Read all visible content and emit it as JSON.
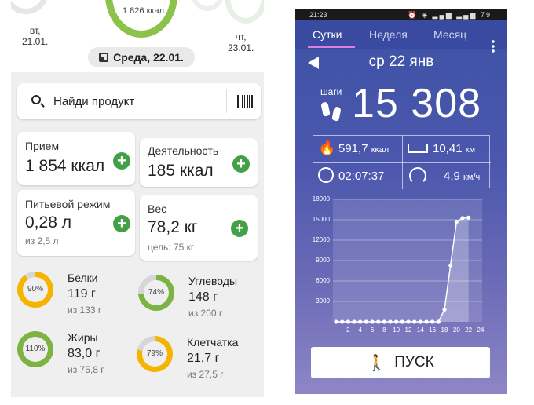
{
  "left": {
    "top_ring_text": "1 826 ккал",
    "days": [
      {
        "name": "вт,",
        "date": "21.01."
      },
      {
        "name": "чт,",
        "date": "23.01."
      }
    ],
    "date_chip": "Среда, 22.01.",
    "search": {
      "placeholder": "Найди продукт"
    },
    "cards": {
      "intake": {
        "title": "Прием",
        "value": "1 854 ккал"
      },
      "activity": {
        "title": "Деятельность",
        "value": "185 ккал"
      },
      "water": {
        "title": "Питьевой режим",
        "value": "0,28 л",
        "sub": "из 2,5 л"
      },
      "weight": {
        "title": "Вес",
        "value": "78,2 кг",
        "sub": "цель: 75 кг"
      }
    },
    "nutrients": [
      {
        "pct": "90%",
        "fraction": 0.9,
        "color": "#f5b400",
        "name": "Белки",
        "value": "119 г",
        "goal": "из 133 г"
      },
      {
        "pct": "74%",
        "fraction": 0.74,
        "color": "#7cb342",
        "name": "Углеводы",
        "value": "148 г",
        "goal": "из 200 г"
      },
      {
        "pct": "110%",
        "fraction": 1.0,
        "color": "#7cb342",
        "name": "Жиры",
        "value": "83,0 г",
        "goal": "из 75,8 г"
      },
      {
        "pct": "79%",
        "fraction": 0.79,
        "color": "#f5b400",
        "name": "Клетчатка",
        "value": "21,7 г",
        "goal": "из 27,5 г"
      }
    ],
    "colors": {
      "accent": "#43a047",
      "ring_green": "#8bc34a"
    }
  },
  "right": {
    "status_time": "21:23",
    "status_battery": "79",
    "tabs": [
      {
        "label": "Сутки",
        "active": true
      },
      {
        "label": "Неделя",
        "active": false
      },
      {
        "label": "Месяц",
        "active": false
      }
    ],
    "date": "ср 22 янв",
    "steps_label": "шаги",
    "steps_value": "15 308",
    "stats": {
      "calories": {
        "value": "591,7",
        "unit": "ккал"
      },
      "distance": {
        "value": "10,41",
        "unit": "км"
      },
      "duration": {
        "value": "02:07:37"
      },
      "speed": {
        "value": "4,9",
        "unit": "км/ч"
      }
    },
    "start_button": "ПУСК",
    "colors": {
      "bg_top": "#3d52a5",
      "bg_bottom": "#8e86c6",
      "tab_underline": "#e07de0"
    }
  },
  "chart_data": {
    "type": "area",
    "title": "",
    "xlabel": "",
    "ylabel": "",
    "x": [
      0,
      1,
      2,
      3,
      4,
      5,
      6,
      7,
      8,
      9,
      10,
      11,
      12,
      13,
      14,
      15,
      16,
      17,
      18,
      19,
      20,
      21,
      22
    ],
    "x_ticks": [
      "2",
      "4",
      "6",
      "8",
      "10",
      "12",
      "14",
      "16",
      "18",
      "20",
      "22",
      "24"
    ],
    "y_ticks": [
      "3000",
      "6000",
      "9000",
      "12000",
      "15000",
      "18000"
    ],
    "series": [
      {
        "values": [
          0,
          0,
          0,
          0,
          0,
          0,
          0,
          0,
          0,
          0,
          0,
          0,
          0,
          0,
          0,
          0,
          0,
          0,
          1800,
          8300,
          14700,
          15250,
          15308
        ]
      }
    ],
    "xlim": [
      0,
      24
    ],
    "ylim": [
      0,
      18000
    ],
    "grid": true
  }
}
